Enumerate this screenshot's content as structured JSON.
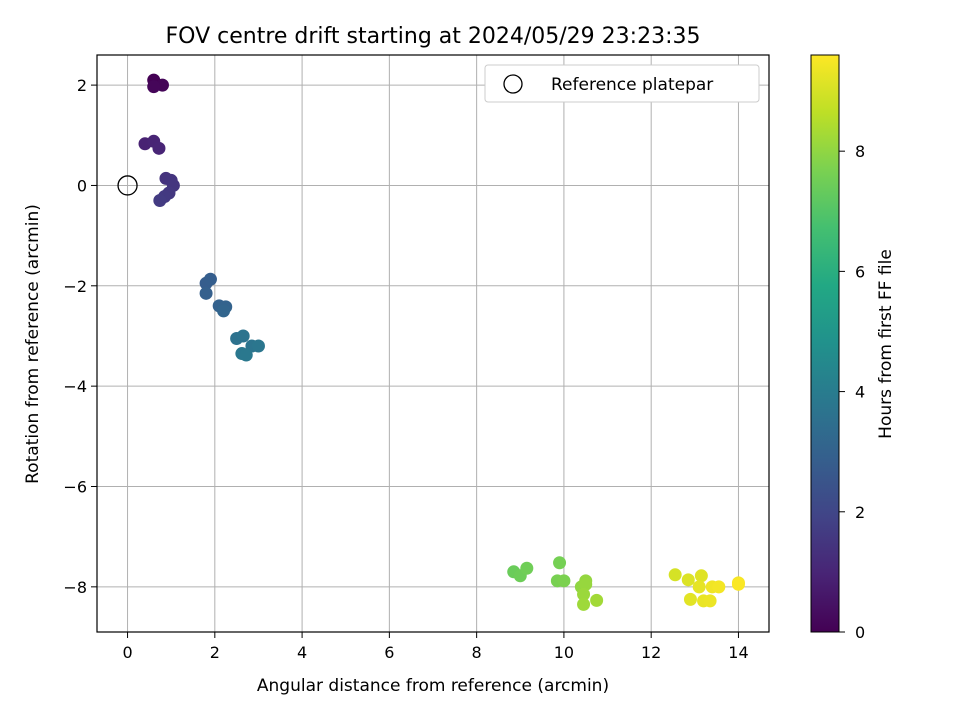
{
  "chart_data": {
    "type": "scatter",
    "title": "FOV centre drift starting at 2024/05/29 23:23:35",
    "xlabel": "Angular distance from reference (arcmin)",
    "ylabel": "Rotation from reference (arcmin)",
    "colorbar_label": "Hours from first FF file",
    "xlim": [
      -0.7,
      14.7
    ],
    "ylim": [
      -8.9,
      2.6
    ],
    "xticks": [
      0,
      2,
      4,
      6,
      8,
      10,
      12,
      14
    ],
    "yticks": [
      -8,
      -6,
      -4,
      -2,
      0,
      2
    ],
    "colorbar_range": [
      0,
      9.6
    ],
    "colorbar_ticks": [
      0,
      2,
      4,
      6,
      8
    ],
    "colormap": "viridis",
    "grid": true,
    "legend": {
      "placement": "top-right",
      "entries": [
        {
          "label": "Reference platepar",
          "marker": "open-circle",
          "x": 0,
          "y": 0
        }
      ]
    },
    "points": [
      {
        "x": 0.6,
        "y": 2.1,
        "hours": 0.0
      },
      {
        "x": 0.8,
        "y": 2.0,
        "hours": 0.1
      },
      {
        "x": 0.6,
        "y": 1.97,
        "hours": 0.15
      },
      {
        "x": 0.4,
        "y": 0.83,
        "hours": 0.9
      },
      {
        "x": 0.6,
        "y": 0.88,
        "hours": 0.95
      },
      {
        "x": 0.72,
        "y": 0.74,
        "hours": 1.0
      },
      {
        "x": 0.88,
        "y": 0.14,
        "hours": 1.4
      },
      {
        "x": 1.0,
        "y": 0.1,
        "hours": 1.45
      },
      {
        "x": 1.05,
        "y": 0.0,
        "hours": 1.5
      },
      {
        "x": 0.95,
        "y": -0.15,
        "hours": 1.55
      },
      {
        "x": 0.85,
        "y": -0.22,
        "hours": 1.6
      },
      {
        "x": 0.74,
        "y": -0.3,
        "hours": 1.65
      },
      {
        "x": 1.8,
        "y": -1.95,
        "hours": 2.8
      },
      {
        "x": 1.9,
        "y": -1.87,
        "hours": 2.85
      },
      {
        "x": 1.8,
        "y": -2.15,
        "hours": 2.9
      },
      {
        "x": 2.1,
        "y": -2.4,
        "hours": 3.0
      },
      {
        "x": 2.25,
        "y": -2.42,
        "hours": 3.05
      },
      {
        "x": 2.2,
        "y": -2.5,
        "hours": 3.1
      },
      {
        "x": 2.5,
        "y": -3.05,
        "hours": 3.6
      },
      {
        "x": 2.65,
        "y": -3.0,
        "hours": 3.65
      },
      {
        "x": 2.85,
        "y": -3.2,
        "hours": 3.7
      },
      {
        "x": 3.0,
        "y": -3.2,
        "hours": 3.75
      },
      {
        "x": 2.62,
        "y": -3.35,
        "hours": 3.8
      },
      {
        "x": 2.72,
        "y": -3.38,
        "hours": 3.85
      },
      {
        "x": 8.85,
        "y": -7.7,
        "hours": 7.4
      },
      {
        "x": 9.0,
        "y": -7.78,
        "hours": 7.45
      },
      {
        "x": 9.15,
        "y": -7.63,
        "hours": 7.5
      },
      {
        "x": 9.9,
        "y": -7.52,
        "hours": 7.6
      },
      {
        "x": 9.85,
        "y": -7.88,
        "hours": 7.65
      },
      {
        "x": 10.0,
        "y": -7.88,
        "hours": 7.7
      },
      {
        "x": 10.4,
        "y": -8.0,
        "hours": 8.0
      },
      {
        "x": 10.5,
        "y": -7.88,
        "hours": 8.05
      },
      {
        "x": 10.5,
        "y": -7.95,
        "hours": 8.1
      },
      {
        "x": 10.45,
        "y": -8.15,
        "hours": 8.15
      },
      {
        "x": 10.45,
        "y": -8.35,
        "hours": 8.2
      },
      {
        "x": 10.75,
        "y": -8.27,
        "hours": 8.25
      },
      {
        "x": 12.55,
        "y": -7.76,
        "hours": 9.0
      },
      {
        "x": 12.85,
        "y": -7.86,
        "hours": 9.1
      },
      {
        "x": 13.15,
        "y": -7.78,
        "hours": 9.15
      },
      {
        "x": 12.9,
        "y": -8.25,
        "hours": 9.2
      },
      {
        "x": 13.1,
        "y": -8.0,
        "hours": 9.25
      },
      {
        "x": 13.2,
        "y": -8.28,
        "hours": 9.3
      },
      {
        "x": 13.35,
        "y": -8.28,
        "hours": 9.35
      },
      {
        "x": 13.4,
        "y": -8.0,
        "hours": 9.4
      },
      {
        "x": 13.55,
        "y": -8.0,
        "hours": 9.45
      },
      {
        "x": 14.0,
        "y": -7.92,
        "hours": 9.5
      },
      {
        "x": 14.0,
        "y": -7.95,
        "hours": 9.55
      }
    ]
  }
}
